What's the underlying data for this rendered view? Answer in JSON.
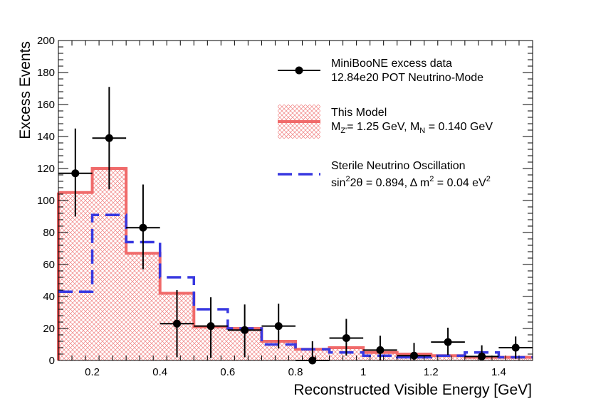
{
  "chart_data": {
    "type": "line",
    "xlabel": "Reconstructed Visible Energy [GeV]",
    "ylabel": "Excess Events",
    "xlim": [
      0.1,
      1.5
    ],
    "ylim": [
      0,
      200
    ],
    "x_ticks": [
      0.2,
      0.4,
      0.6,
      0.8,
      1,
      1.2,
      1.4
    ],
    "y_ticks": [
      0,
      20,
      40,
      60,
      80,
      100,
      120,
      140,
      160,
      180,
      200
    ],
    "bin_edges": [
      0.1,
      0.2,
      0.3,
      0.4,
      0.5,
      0.6,
      0.7,
      0.8,
      0.9,
      1.0,
      1.1,
      1.2,
      1.3,
      1.4,
      1.5
    ],
    "legend_placement": "top-right",
    "series": [
      {
        "name_lines": [
          "MiniBooNE excess data",
          "12.84e20 POT Neutrino-Mode"
        ],
        "kind": "points",
        "color": "#000000",
        "x": [
          0.15,
          0.25,
          0.35,
          0.45,
          0.55,
          0.65,
          0.75,
          0.85,
          0.95,
          1.05,
          1.15,
          1.25,
          1.35,
          1.45
        ],
        "y": [
          117,
          139,
          83,
          23,
          21.5,
          19,
          21.5,
          0,
          14,
          6.5,
          3,
          11.5,
          2.5,
          8
        ],
        "y_err_low": [
          27,
          32,
          26,
          21,
          20,
          17,
          14,
          12,
          11,
          9,
          8,
          8,
          7,
          7
        ],
        "y_err_high": [
          28,
          32,
          27,
          21,
          18,
          16,
          14,
          12,
          12,
          9,
          8,
          9,
          7,
          7
        ],
        "x_err": 0.05
      },
      {
        "name_lines": [
          "This Model",
          "M_{Z'}= 1.25 GeV, M_{N} = 0.140 GeV"
        ],
        "kind": "hist-filled",
        "color": "#f06a6a",
        "values": [
          105,
          120,
          67,
          42,
          21,
          20,
          12,
          7,
          8,
          5,
          4,
          3,
          2,
          2
        ]
      },
      {
        "name_lines": [
          "Sterile Neutrino Oscillation",
          "sin^{2}2θ = 0.894, Δ m^{2} = 0.04 eV^{2}"
        ],
        "kind": "hist-dashed",
        "color": "#3838e0",
        "values": [
          43,
          91,
          74,
          52,
          32,
          20,
          10,
          7,
          5,
          3,
          2,
          3,
          5,
          2
        ]
      }
    ]
  },
  "legend": {
    "data_line1": "MiniBooNE excess data",
    "data_line2": "12.84e20 POT Neutrino-Mode",
    "model_line1": "This Model",
    "model_l2_a": "M",
    "model_l2_sub1": "Z'",
    "model_l2_b": "= 1.25 GeV, M",
    "model_l2_sub2": "N",
    "model_l2_c": " = 0.140 GeV",
    "sterile_line1": "Sterile Neutrino Oscillation",
    "sterile_l2_a": "sin",
    "sterile_l2_sup1": "2",
    "sterile_l2_b": "2θ = 0.894, Δ m",
    "sterile_l2_sup2": "2",
    "sterile_l2_c": " = 0.04 eV",
    "sterile_l2_sup3": "2"
  }
}
